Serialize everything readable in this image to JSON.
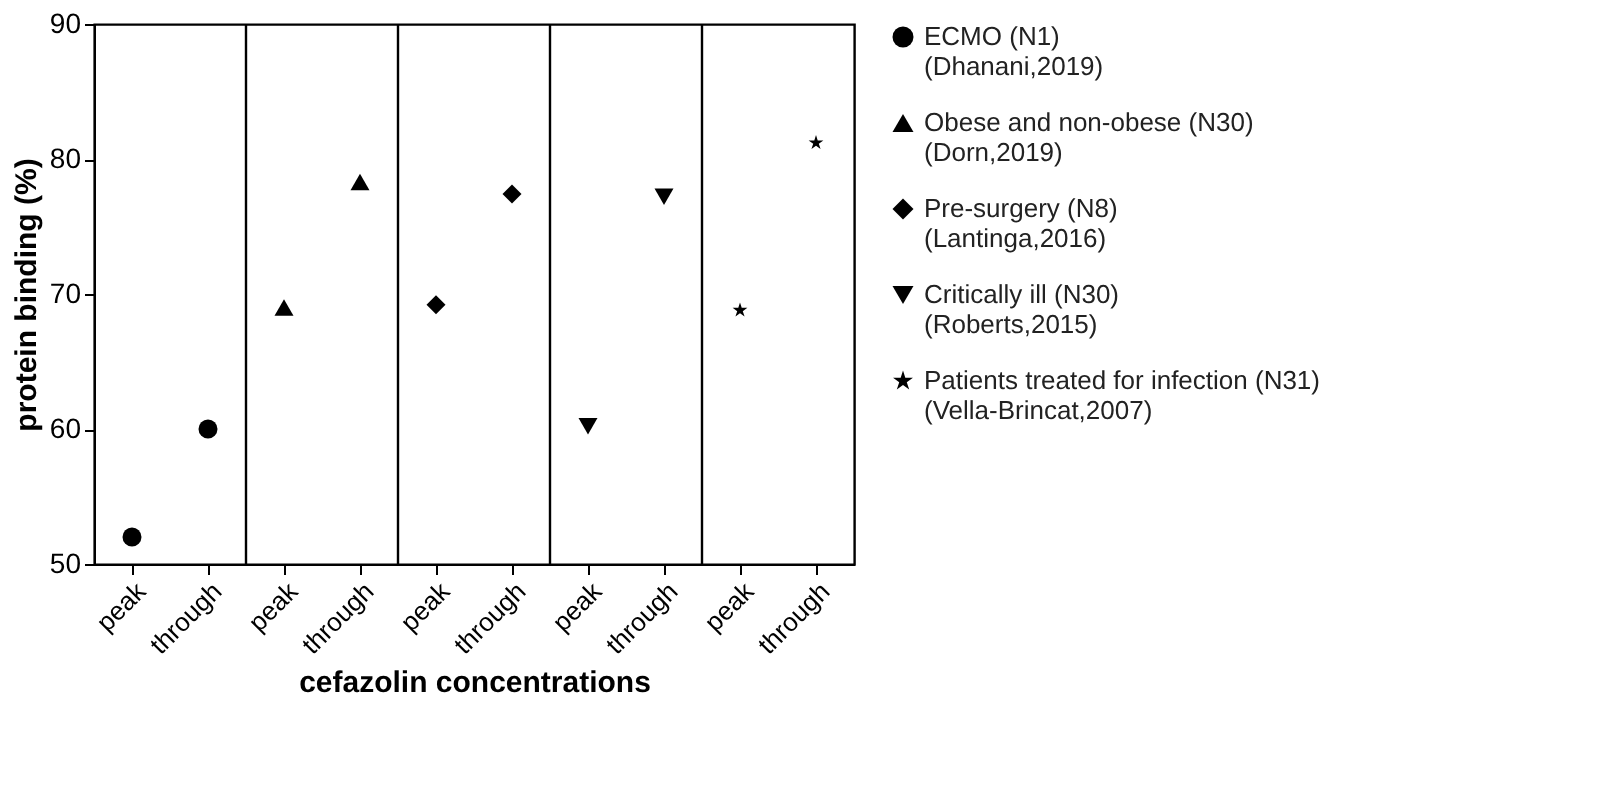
{
  "chart_data": {
    "type": "scatter",
    "xlabel": "cefazolin concentrations",
    "ylabel": "protein binding (%)",
    "categories": [
      "peak",
      "through",
      "peak",
      "through",
      "peak",
      "through",
      "peak",
      "through",
      "peak",
      "through"
    ],
    "ylim": [
      50,
      90
    ],
    "yticks": [
      50,
      60,
      70,
      80,
      90
    ],
    "legend": "right",
    "grid": false,
    "series": [
      {
        "name": "ECMO (N1)\n(Dhanani,2019)",
        "color": "#000000",
        "marker": "circle",
        "values": [
          52,
          60,
          null,
          null,
          null,
          null,
          null,
          null,
          null,
          null
        ]
      },
      {
        "name": "Obese and non-obese (N30)\n(Dorn,2019)",
        "color": "#000000",
        "marker": "triangle",
        "values": [
          null,
          null,
          69,
          78.3,
          null,
          null,
          null,
          null,
          null,
          null
        ]
      },
      {
        "name": "Pre-surgery (N8)\n(Lantinga,2016)",
        "color": "#000000",
        "marker": "diamond",
        "values": [
          null,
          null,
          null,
          null,
          69.2,
          77.4,
          null,
          null,
          null,
          null
        ]
      },
      {
        "name": "Critically ill (N30)\n(Roberts,2015)",
        "color": "#000000",
        "marker": "triangle_down",
        "values": [
          null,
          null,
          null,
          null,
          null,
          null,
          60.2,
          77.2,
          null,
          null
        ]
      },
      {
        "name": "Patients treated for infection (N31)\n(Vella-Brincat,2007)",
        "color": "#000000",
        "marker": "star",
        "values": [
          null,
          null,
          null,
          null,
          null,
          null,
          null,
          null,
          68.8,
          81.2
        ]
      }
    ]
  }
}
